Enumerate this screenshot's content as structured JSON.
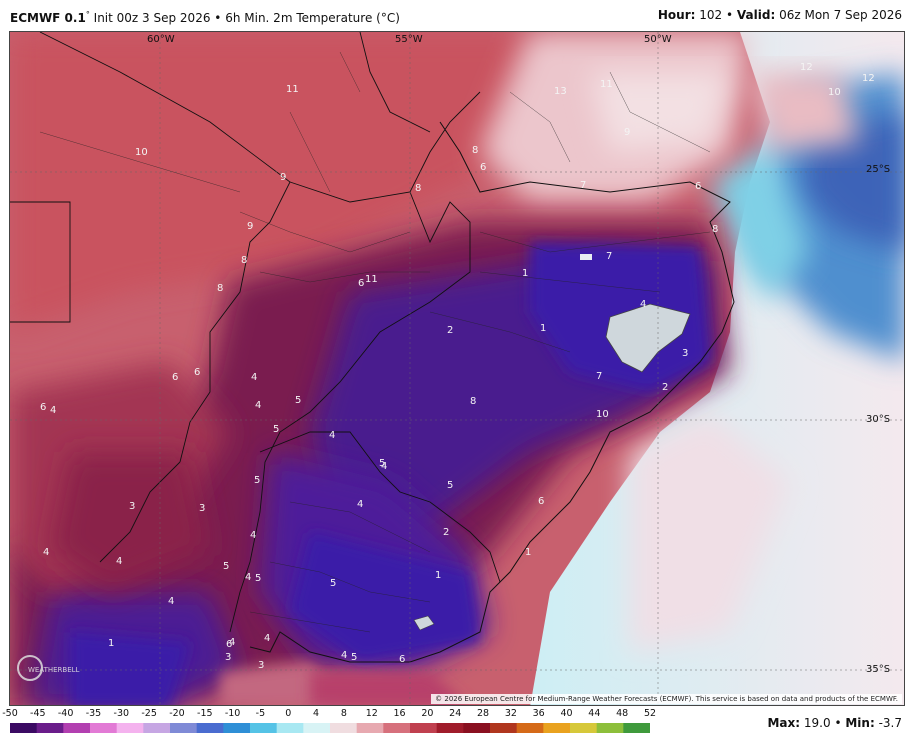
{
  "header": {
    "model": "ECMWF 0.1",
    "degree_sign": "°",
    "init_text": "Init 00z 3 Sep 2026",
    "bullet": "•",
    "field": "6h Min. 2m Temperature (°C)",
    "hour_label": "Hour:",
    "hour_value": "102",
    "valid_label": "Valid:",
    "valid_value": "06z Mon 7 Sep 2026"
  },
  "map": {
    "lon_labels": [
      "60°W",
      "55°W",
      "50°W"
    ],
    "lat_labels": [
      "25°S",
      "30°S",
      "35°S"
    ],
    "credit": "© 2026 European Centre for Medium-Range Weather Forecasts (ECMWF). This service is based on data and products of the ECMWF.",
    "logo_text": "WEATHERBELL",
    "values": [
      "11",
      "13",
      "11",
      "12",
      "12",
      "10",
      "10",
      "9",
      "9",
      "8",
      "6",
      "7",
      "6",
      "8",
      "9",
      "8",
      "8",
      "8",
      "11",
      "6",
      "7",
      "1",
      "4",
      "1",
      "2",
      "3",
      "7",
      "2",
      "10",
      "6",
      "4",
      "6",
      "4",
      "5",
      "4",
      "5",
      "4",
      "8",
      "6",
      "4",
      "5",
      "4",
      "5",
      "3",
      "3",
      "4",
      "2",
      "4",
      "5",
      "4",
      "5",
      "5",
      "1",
      "1",
      "4",
      "4",
      "4",
      "3",
      "4",
      "6",
      "6",
      "3",
      "5",
      "4",
      "5",
      "6",
      "1"
    ]
  },
  "scale": {
    "ticks": [
      "-50",
      "-45",
      "-40",
      "-35",
      "-30",
      "-25",
      "-20",
      "-15",
      "-10",
      "-5",
      "0",
      "4",
      "8",
      "12",
      "16",
      "20",
      "24",
      "28",
      "32",
      "36",
      "40",
      "44",
      "48",
      "52"
    ],
    "colors": [
      "#3b0a63",
      "#6a1d8a",
      "#b23fb0",
      "#e27ad5",
      "#f4b2ee",
      "#c6a6e3",
      "#7f8ad6",
      "#4a6cd0",
      "#2f8fd6",
      "#55c3e6",
      "#a8e8f2",
      "#d8f3f5",
      "#f0dde0",
      "#e7a9b0",
      "#d6707c",
      "#c0404f",
      "#a01c2b",
      "#8a1020",
      "#b0361e",
      "#d56a18",
      "#e9a21f",
      "#d6c83a",
      "#8dbf3b",
      "#3f9a3c"
    ]
  },
  "stats": {
    "max_label": "Max:",
    "max_value": "19.0",
    "min_label": "Min:",
    "min_value": "-3.7"
  }
}
